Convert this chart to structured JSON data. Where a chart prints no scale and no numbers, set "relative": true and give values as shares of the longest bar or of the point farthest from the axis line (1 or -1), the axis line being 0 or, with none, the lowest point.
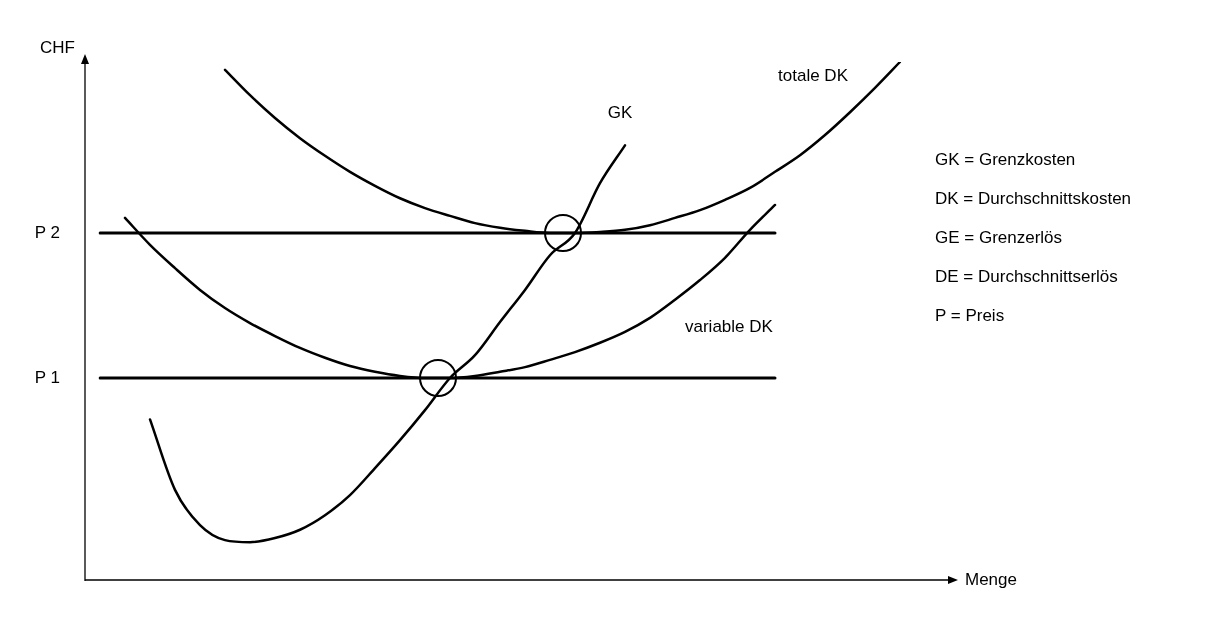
{
  "chart_data": {
    "type": "line",
    "relative": true,
    "xlabel": "Menge",
    "ylabel": "CHF",
    "legend": false,
    "marker": "none",
    "categories": [
      null,
      null,
      null,
      null,
      null,
      null,
      null,
      null,
      null,
      null,
      null,
      null,
      null,
      null,
      null,
      null,
      null,
      null,
      null,
      null,
      null,
      null,
      null,
      null,
      null,
      null,
      null,
      null,
      null,
      null,
      null,
      null,
      null
    ],
    "series": [
      {
        "name": "P 2",
        "color": "#000000",
        "values": [
          0.67,
          0.67,
          0.67,
          0.67,
          0.67,
          0.67,
          0.67,
          0.67,
          0.67,
          0.67,
          0.67,
          0.67,
          0.67,
          0.67,
          0.67,
          0.67,
          0.67,
          0.67,
          0.67,
          0.67,
          0.67,
          0.67,
          0.67,
          0.67,
          0.67,
          0.67,
          0.67,
          0.67,
          null,
          null,
          null,
          null,
          null
        ]
      },
      {
        "name": "P 1",
        "color": "#000000",
        "values": [
          0.39,
          0.39,
          0.39,
          0.39,
          0.39,
          0.39,
          0.39,
          0.39,
          0.39,
          0.39,
          0.39,
          0.39,
          0.39,
          0.39,
          0.39,
          0.39,
          0.39,
          0.39,
          0.39,
          0.39,
          0.39,
          0.39,
          0.39,
          0.39,
          0.39,
          0.39,
          0.39,
          0.39,
          null,
          null,
          null,
          null,
          null
        ]
      },
      {
        "name": "GK",
        "color": "#000000",
        "values": [
          null,
          null,
          0.31,
          0.174,
          0.106,
          0.077,
          0.073,
          0.081,
          0.097,
          0.125,
          0.164,
          0.216,
          0.27,
          0.328,
          0.39,
          0.434,
          0.498,
          0.56,
          0.627,
          0.67,
          0.766,
          0.839,
          null,
          null,
          null,
          null,
          null,
          null,
          null,
          null,
          null,
          null,
          null
        ]
      },
      {
        "name": "variable DK",
        "color": "#000000",
        "values": [
          null,
          0.699,
          0.647,
          0.602,
          0.56,
          0.525,
          0.496,
          0.471,
          0.448,
          0.429,
          0.413,
          0.402,
          0.394,
          0.39,
          0.39,
          0.394,
          0.402,
          0.411,
          0.425,
          0.44,
          0.458,
          0.479,
          0.506,
          0.541,
          0.579,
          0.622,
          0.676,
          0.724,
          null,
          null,
          null,
          null,
          null
        ]
      },
      {
        "name": "totale DK",
        "color": "#000000",
        "values": [
          null,
          null,
          null,
          null,
          null,
          0.985,
          0.936,
          0.892,
          0.853,
          0.819,
          0.788,
          0.761,
          0.737,
          0.718,
          0.703,
          0.689,
          0.68,
          0.674,
          0.67,
          0.67,
          0.672,
          0.676,
          0.685,
          0.699,
          0.714,
          0.734,
          0.757,
          0.788,
          0.82,
          0.859,
          0.903,
          0.95,
          1
        ]
      }
    ],
    "annotations": [
      "GK = Grenzkosten",
      "DK = Durchschnittskosten",
      "GE = Grenzerlös",
      "DE = Durchschnittserlös",
      "P = Preis"
    ]
  }
}
